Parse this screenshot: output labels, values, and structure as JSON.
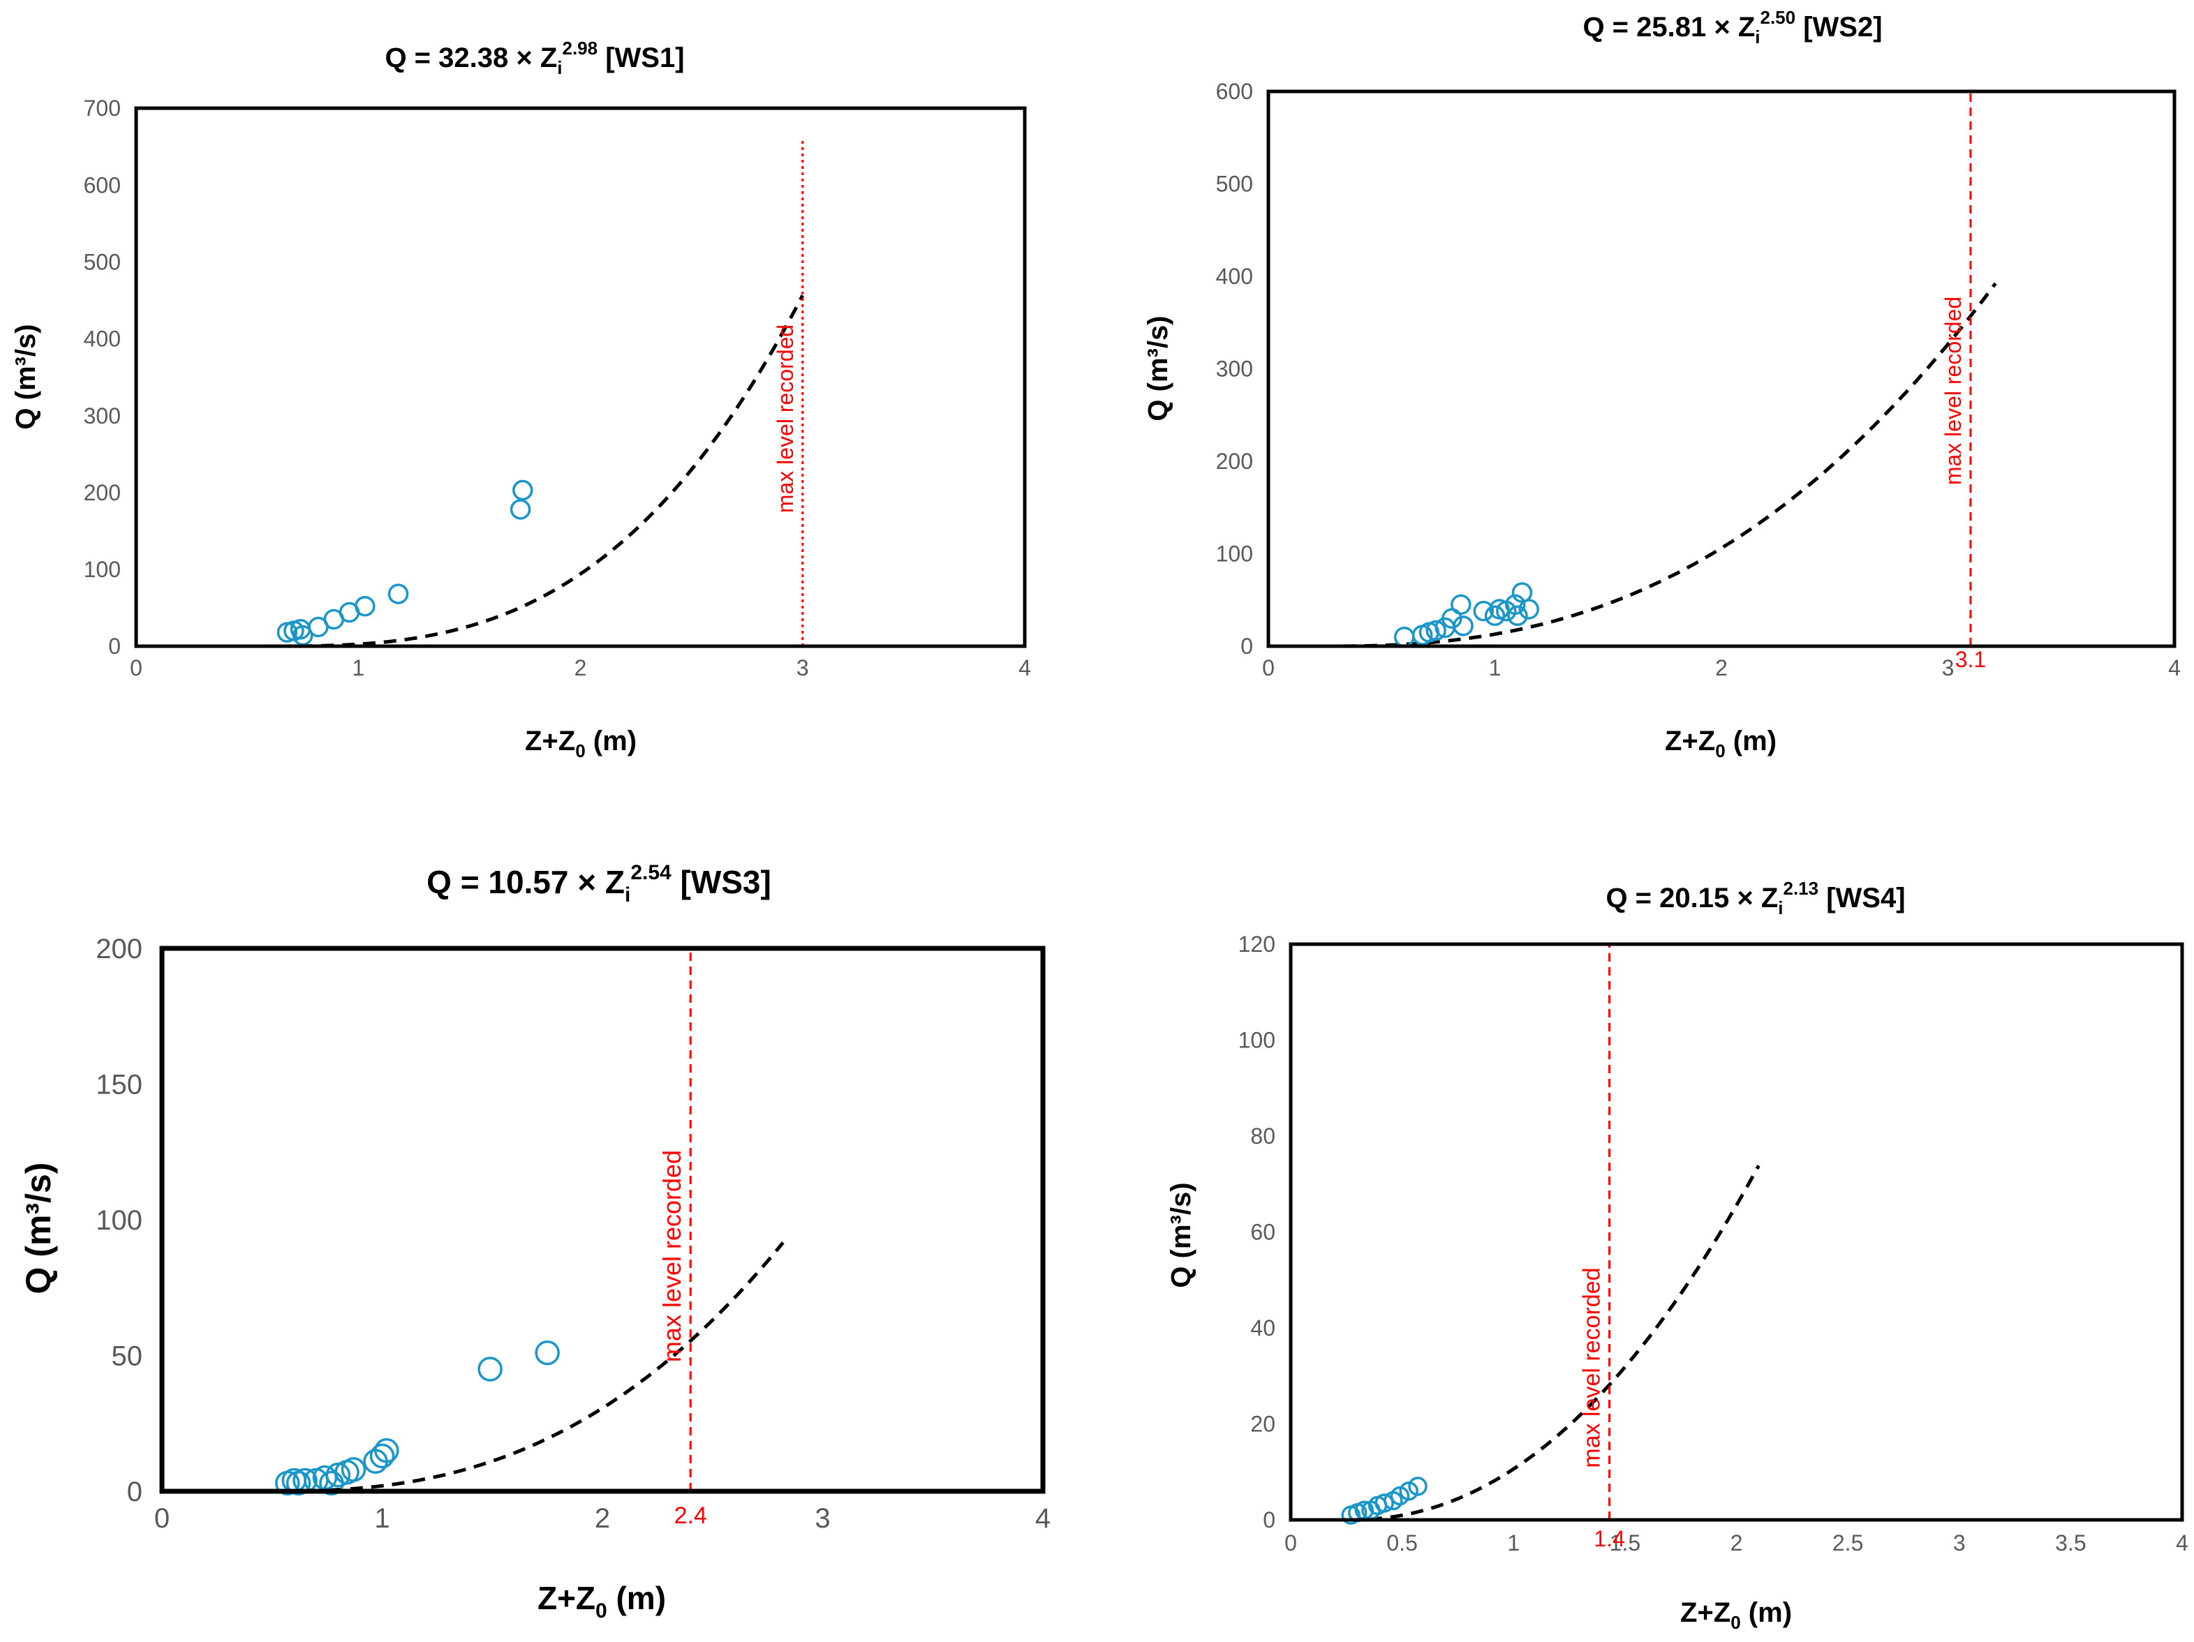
{
  "colors": {
    "marker": "#1a96c8",
    "fit_line": "#000000",
    "max_line": "#ff0000",
    "tick_text": "#595959"
  },
  "chart_data": [
    {
      "id": "ws1",
      "type": "scatter",
      "title_prefix": "Q = 32.38 × Z",
      "title_sub": "i",
      "title_sup": "2.98",
      "title_suffix": " [WS1]",
      "xlabel_main": "Z+Z",
      "xlabel_sub": "0",
      "xlabel_suffix": " (m)",
      "ylabel": "Q (m³/s)",
      "xlim": [
        0,
        4
      ],
      "ylim": [
        0,
        700
      ],
      "xticks": [
        0,
        1,
        2,
        3,
        4
      ],
      "yticks": [
        0,
        100,
        200,
        300,
        400,
        500,
        600,
        700
      ],
      "grid": false,
      "fit": {
        "a": 32.38,
        "b": 2.98,
        "x0": 0.57,
        "x_from": 0.55,
        "x_to": 3.0,
        "style": "dashed"
      },
      "max_level": {
        "x": 3.0,
        "y_top": 660,
        "label": "max level recorded",
        "value_label": "",
        "style": "dotted"
      },
      "points": [
        {
          "x": 0.68,
          "y": 18
        },
        {
          "x": 0.71,
          "y": 20
        },
        {
          "x": 0.74,
          "y": 22
        },
        {
          "x": 0.75,
          "y": 14
        },
        {
          "x": 0.82,
          "y": 25
        },
        {
          "x": 0.89,
          "y": 35
        },
        {
          "x": 0.96,
          "y": 44
        },
        {
          "x": 1.03,
          "y": 52
        },
        {
          "x": 1.18,
          "y": 68
        },
        {
          "x": 1.73,
          "y": 178
        },
        {
          "x": 1.74,
          "y": 203
        }
      ]
    },
    {
      "id": "ws2",
      "type": "scatter",
      "title_prefix": "Q = 25.81 × Z",
      "title_sub": "i",
      "title_sup": "2.50",
      "title_suffix": " [WS2]",
      "xlabel_main": "Z+Z",
      "xlabel_sub": "0",
      "xlabel_suffix": " (m)",
      "ylabel": "Q (m³/s)",
      "xlim": [
        0,
        4
      ],
      "ylim": [
        0,
        600
      ],
      "xticks": [
        0,
        1,
        2,
        3,
        4
      ],
      "yticks": [
        0,
        100,
        200,
        300,
        400,
        500,
        600
      ],
      "grid": false,
      "fit": {
        "a": 25.81,
        "b": 2.5,
        "x0": 0.24,
        "x_from": 0.24,
        "x_to": 3.21,
        "style": "dashed"
      },
      "max_level": {
        "x": 3.1,
        "y_top": 600,
        "label": "max level recorded",
        "value_label": "3.1",
        "style": "dashed"
      },
      "points": [
        {
          "x": 0.6,
          "y": 10
        },
        {
          "x": 0.68,
          "y": 12
        },
        {
          "x": 0.71,
          "y": 15
        },
        {
          "x": 0.74,
          "y": 17
        },
        {
          "x": 0.78,
          "y": 20
        },
        {
          "x": 0.81,
          "y": 30
        },
        {
          "x": 0.85,
          "y": 45
        },
        {
          "x": 0.86,
          "y": 22
        },
        {
          "x": 0.95,
          "y": 38
        },
        {
          "x": 1.0,
          "y": 33
        },
        {
          "x": 1.02,
          "y": 40
        },
        {
          "x": 1.05,
          "y": 38
        },
        {
          "x": 1.09,
          "y": 45
        },
        {
          "x": 1.1,
          "y": 33
        },
        {
          "x": 1.12,
          "y": 58
        },
        {
          "x": 1.15,
          "y": 40
        }
      ]
    },
    {
      "id": "ws3",
      "type": "scatter",
      "title_prefix": "Q = 10.57 × Z",
      "title_sub": "i",
      "title_sup": "2.54",
      "title_suffix": " [WS3]",
      "xlabel_main": "Z+Z",
      "xlabel_sub": "0",
      "xlabel_suffix": " (m)",
      "ylabel": "Q (m³/s)",
      "xlim": [
        0,
        4
      ],
      "ylim": [
        0,
        200
      ],
      "xticks": [
        0,
        1,
        2,
        3,
        4
      ],
      "yticks": [
        0,
        50,
        100,
        150,
        200
      ],
      "grid": false,
      "fit": {
        "a": 10.57,
        "b": 2.54,
        "x0": 0.48,
        "x_from": 0.0,
        "x_to": 2.82,
        "style": "dashed"
      },
      "max_level": {
        "x": 2.4,
        "y_top": 200,
        "label": "max level recorded",
        "value_label": "2.4",
        "style": "dashed"
      },
      "points": [
        {
          "x": 0.57,
          "y": 3
        },
        {
          "x": 0.6,
          "y": 4
        },
        {
          "x": 0.62,
          "y": 3
        },
        {
          "x": 0.65,
          "y": 4
        },
        {
          "x": 0.7,
          "y": 4
        },
        {
          "x": 0.74,
          "y": 5
        },
        {
          "x": 0.77,
          "y": 3
        },
        {
          "x": 0.8,
          "y": 6
        },
        {
          "x": 0.84,
          "y": 7
        },
        {
          "x": 0.87,
          "y": 8
        },
        {
          "x": 0.97,
          "y": 11
        },
        {
          "x": 1.0,
          "y": 13
        },
        {
          "x": 1.02,
          "y": 15
        },
        {
          "x": 1.49,
          "y": 45
        },
        {
          "x": 1.75,
          "y": 51
        }
      ]
    },
    {
      "id": "ws4",
      "type": "scatter",
      "title_prefix": "Q = 20.15 × Z",
      "title_sub": "i",
      "title_sup": "2.13",
      "title_suffix": " [WS4]",
      "xlabel_main": "Z+Z",
      "xlabel_sub": "0",
      "xlabel_suffix": " (m)",
      "ylabel": "Q (m³/s)",
      "xlim": [
        0,
        4
      ],
      "ylim": [
        0,
        120
      ],
      "xticks": [
        0,
        0.5,
        1,
        1.5,
        2,
        2.5,
        3,
        3.5,
        4
      ],
      "yticks": [
        0,
        20,
        40,
        60,
        80,
        100,
        120
      ],
      "grid": false,
      "fit": {
        "a": 20.15,
        "b": 2.13,
        "x0": 0.26,
        "x_from": 0.26,
        "x_to": 2.1,
        "style": "dashed"
      },
      "max_level": {
        "x": 1.43,
        "y_top": 120,
        "label": "max level recorded",
        "value_label": "1.4",
        "style": "dashed"
      },
      "points": [
        {
          "x": 0.27,
          "y": 1
        },
        {
          "x": 0.3,
          "y": 1.5
        },
        {
          "x": 0.33,
          "y": 2
        },
        {
          "x": 0.36,
          "y": 2
        },
        {
          "x": 0.39,
          "y": 3
        },
        {
          "x": 0.42,
          "y": 3.5
        },
        {
          "x": 0.46,
          "y": 4
        },
        {
          "x": 0.49,
          "y": 5
        },
        {
          "x": 0.53,
          "y": 6
        },
        {
          "x": 0.57,
          "y": 7
        }
      ]
    }
  ]
}
